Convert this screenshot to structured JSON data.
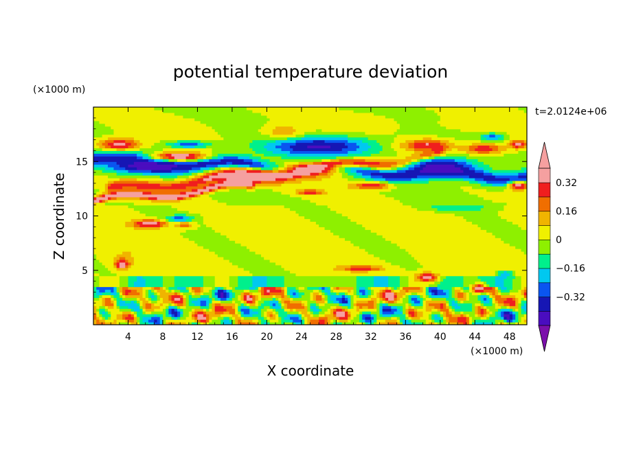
{
  "chart_data": {
    "type": "heatmap",
    "title": "potential temperature deviation",
    "xlabel": "X coordinate",
    "ylabel": "Z coordinate",
    "x_unit": "(×1000 m)",
    "y_unit": "(×1000 m)",
    "time_label": "t=2.0124e+06",
    "xlim": [
      0,
      50
    ],
    "ylim": [
      0,
      20
    ],
    "x_ticks": [
      4,
      8,
      12,
      16,
      20,
      24,
      28,
      32,
      36,
      40,
      44,
      48
    ],
    "y_ticks": [
      5,
      10,
      15
    ],
    "colorbar": {
      "levels": [
        -0.48,
        -0.4,
        -0.32,
        -0.24,
        -0.16,
        -0.08,
        0,
        0.08,
        0.16,
        0.24,
        0.32,
        0.4
      ],
      "colors": [
        "#7b10ab",
        "#4a0dbf",
        "#1616b4",
        "#0a55f0",
        "#00c8f0",
        "#00f08c",
        "#8ef000",
        "#f0f000",
        "#f0b400",
        "#f06e00",
        "#f01e1e",
        "#f5a0a0",
        "#f5a0a0"
      ],
      "labels": [
        {
          "value": 0.32,
          "text": "0.32"
        },
        {
          "value": 0.16,
          "text": "0.16"
        },
        {
          "value": 0,
          "text": "0"
        },
        {
          "value": -0.16,
          "text": "−0.16"
        },
        {
          "value": -0.32,
          "text": "−0.32"
        }
      ]
    },
    "field_features": [
      {
        "type": "band",
        "x0": 0,
        "x1": 50,
        "zc0": 15.2,
        "zc1": 13.6,
        "half": 0.8,
        "value": -0.36
      },
      {
        "type": "band",
        "x0": 2,
        "x1": 40,
        "zc0": 12.4,
        "zc1": 15.6,
        "half": 0.55,
        "value": 0.3
      },
      {
        "type": "band",
        "x0": 0,
        "x1": 18,
        "zc0": 11.4,
        "zc1": 12.8,
        "half": 0.4,
        "value": 0.4
      },
      {
        "type": "blob",
        "x": 6,
        "z": 14.6,
        "rx": 6,
        "rz": 0.9,
        "value": -0.45
      },
      {
        "type": "blob",
        "x": 18,
        "z": 13.6,
        "rx": 6,
        "rz": 0.8,
        "value": 0.42
      },
      {
        "type": "blob",
        "x": 25,
        "z": 14.3,
        "rx": 4,
        "rz": 0.9,
        "value": 0.44
      },
      {
        "type": "blob",
        "x": 3,
        "z": 16.6,
        "rx": 3,
        "rz": 0.7,
        "value": 0.35
      },
      {
        "type": "blob",
        "x": 10,
        "z": 15.5,
        "rx": 4,
        "rz": 0.5,
        "value": 0.4
      },
      {
        "type": "blob",
        "x": 11,
        "z": 16.6,
        "rx": 3,
        "rz": 0.4,
        "value": -0.3
      },
      {
        "type": "blob",
        "x": 26,
        "z": 16.4,
        "rx": 8,
        "rz": 1.2,
        "value": -0.42
      },
      {
        "type": "blob",
        "x": 22,
        "z": 17.8,
        "rx": 3,
        "rz": 0.8,
        "value": 0.14
      },
      {
        "type": "blob",
        "x": 38.5,
        "z": 16.5,
        "rx": 3.5,
        "rz": 0.7,
        "value": 0.34
      },
      {
        "type": "blob",
        "x": 40,
        "z": 14.5,
        "rx": 5,
        "rz": 1.1,
        "value": -0.44
      },
      {
        "type": "blob",
        "x": 45,
        "z": 16.2,
        "rx": 3,
        "rz": 0.6,
        "value": 0.3
      },
      {
        "type": "blob",
        "x": 46,
        "z": 17.3,
        "rx": 1.5,
        "rz": 0.4,
        "value": -0.3
      },
      {
        "type": "blob",
        "x": 49,
        "z": 16.6,
        "rx": 1.2,
        "rz": 0.5,
        "value": 0.34
      },
      {
        "type": "blob",
        "x": 49,
        "z": 12.8,
        "rx": 1.5,
        "rz": 0.5,
        "value": 0.38
      },
      {
        "type": "blob",
        "x": 32,
        "z": 12.8,
        "rx": 3,
        "rz": 0.4,
        "value": 0.3
      },
      {
        "type": "blob",
        "x": 25,
        "z": 12.2,
        "rx": 2,
        "rz": 0.3,
        "value": 0.3
      },
      {
        "type": "blob",
        "x": 6.5,
        "z": 9.3,
        "rx": 2.5,
        "rz": 0.45,
        "value": 0.4
      },
      {
        "type": "blob",
        "x": 10.5,
        "z": 9.2,
        "rx": 1.2,
        "rz": 0.4,
        "value": 0.24
      },
      {
        "type": "blob",
        "x": 10,
        "z": 9.8,
        "rx": 2,
        "rz": 0.4,
        "value": -0.28
      },
      {
        "type": "blob",
        "x": 42,
        "z": 10.8,
        "rx": 5,
        "rz": 0.4,
        "value": -0.16
      },
      {
        "type": "blob",
        "x": 4,
        "z": 6.5,
        "rx": 3,
        "rz": 1.5,
        "value": 0.08
      },
      {
        "type": "blob",
        "x": 3.3,
        "z": 5.6,
        "rx": 1,
        "rz": 0.6,
        "value": 0.42
      },
      {
        "type": "blob",
        "x": 41,
        "z": 6.8,
        "rx": 3,
        "rz": 2,
        "value": 0.08
      },
      {
        "type": "blob",
        "x": 38.5,
        "z": 4.4,
        "rx": 1.5,
        "rz": 0.5,
        "value": 0.42
      },
      {
        "type": "blob",
        "x": 44.5,
        "z": 3.4,
        "rx": 1,
        "rz": 0.5,
        "value": 0.42
      },
      {
        "type": "blob",
        "x": 47.5,
        "z": 4.7,
        "rx": 1.2,
        "rz": 0.4,
        "value": -0.24
      },
      {
        "type": "blob",
        "x": 31,
        "z": 5.2,
        "rx": 3,
        "rz": 0.3,
        "value": 0.32
      },
      {
        "type": "blob",
        "x": 8,
        "z": 18.2,
        "rx": 5,
        "rz": 1,
        "value": 0.04
      },
      {
        "type": "blob",
        "x": 30,
        "z": 18.6,
        "rx": 6,
        "rz": 1,
        "value": 0.05
      },
      {
        "type": "blob",
        "x": 44,
        "z": 18.5,
        "rx": 5,
        "rz": 0.8,
        "value": 0.05
      }
    ]
  }
}
